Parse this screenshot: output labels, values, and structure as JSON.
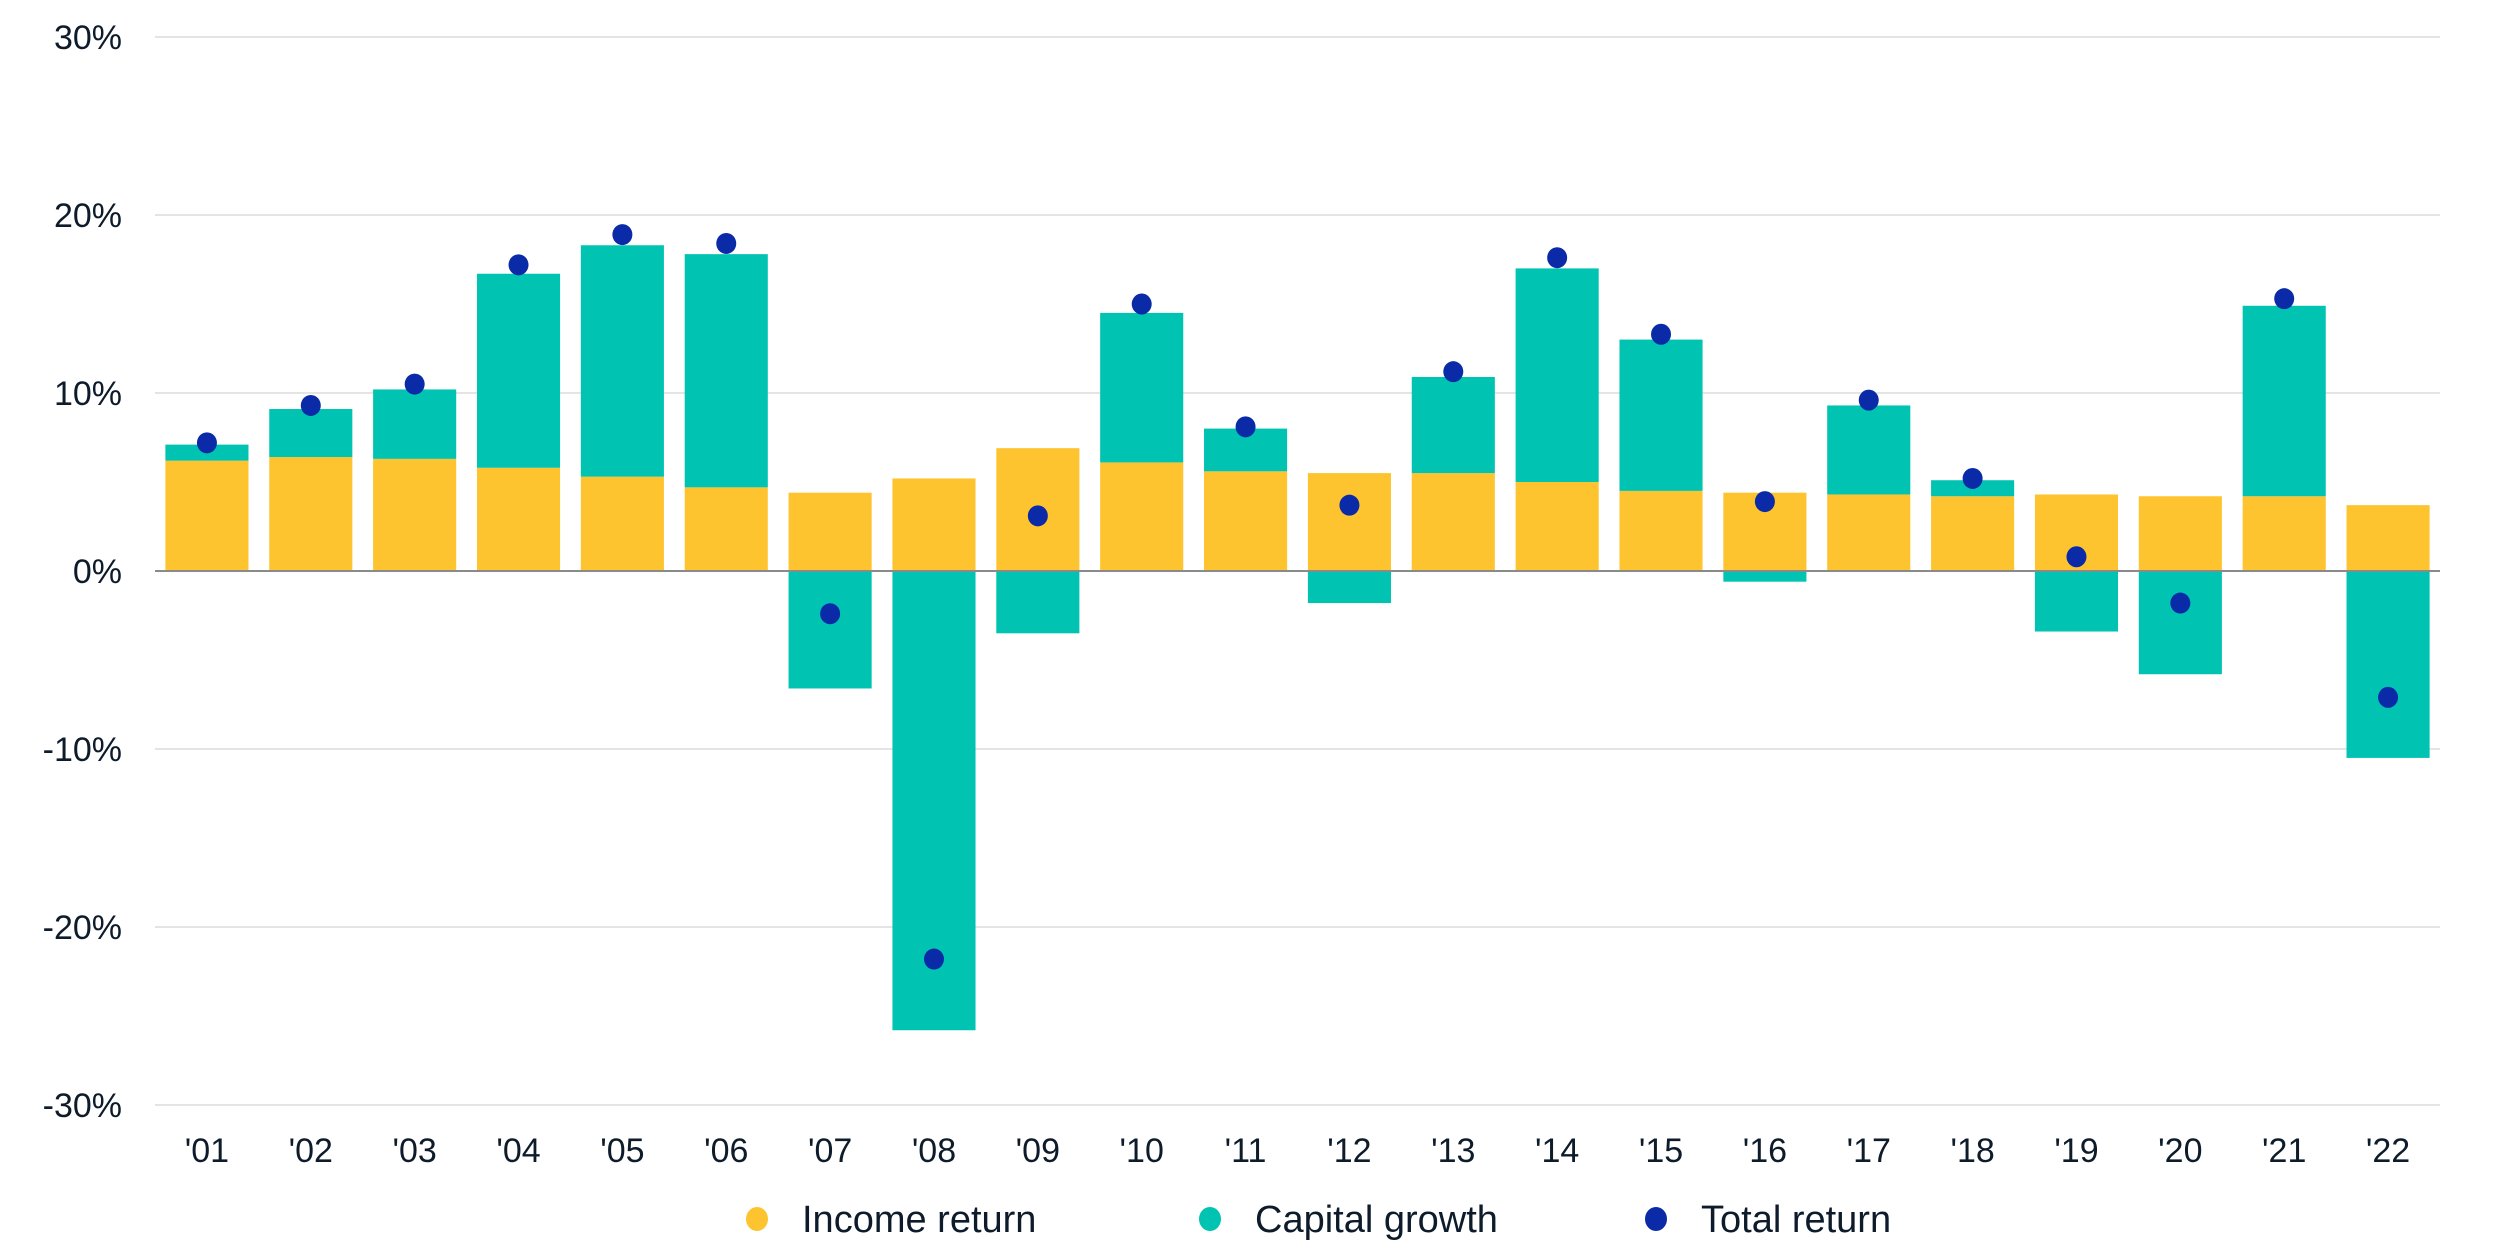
{
  "chart_data": {
    "type": "bar",
    "stacked": true,
    "title": "",
    "xlabel": "",
    "ylabel": "",
    "ylim": [
      -30,
      30
    ],
    "yticks": [
      30,
      20,
      10,
      0,
      -10,
      -20,
      -30
    ],
    "ytick_labels": [
      "30%",
      "20%",
      "10%",
      "0%",
      "-10%",
      "-20%",
      "-30%"
    ],
    "grid": true,
    "legend_position": "bottom-center",
    "categories": [
      "'01",
      "'02",
      "'03",
      "'04",
      "'05",
      "'06",
      "'07",
      "'08",
      "'09",
      "'10",
      "'11",
      "'12",
      "'13",
      "'14",
      "'15",
      "'16",
      "'17",
      "'18",
      "'19",
      "'20",
      "'21",
      "'22"
    ],
    "series": [
      {
        "name": "Income return",
        "kind": "bar",
        "color": "#FDC42F",
        "values": [
          6.2,
          6.4,
          6.3,
          5.8,
          5.3,
          4.7,
          4.4,
          5.2,
          6.9,
          6.1,
          5.6,
          5.5,
          5.5,
          5.0,
          4.5,
          4.4,
          4.3,
          4.2,
          4.3,
          4.2,
          4.2,
          3.7
        ]
      },
      {
        "name": "Capital growth",
        "kind": "bar",
        "color": "#00C3B2",
        "values": [
          0.9,
          2.7,
          3.9,
          10.9,
          13.0,
          13.1,
          -6.6,
          -25.8,
          -3.5,
          8.4,
          2.4,
          -1.8,
          5.4,
          12.0,
          8.5,
          -0.6,
          5.0,
          0.9,
          -3.4,
          -5.8,
          10.7,
          -10.5
        ]
      },
      {
        "name": "Total return",
        "kind": "scatter",
        "color": "#0A2AA8",
        "values": [
          7.2,
          9.3,
          10.5,
          17.2,
          18.9,
          18.4,
          -2.4,
          -21.8,
          3.1,
          15.0,
          8.1,
          3.7,
          11.2,
          17.6,
          13.3,
          3.9,
          9.6,
          5.2,
          0.8,
          -1.8,
          15.3,
          -7.1
        ]
      }
    ]
  }
}
